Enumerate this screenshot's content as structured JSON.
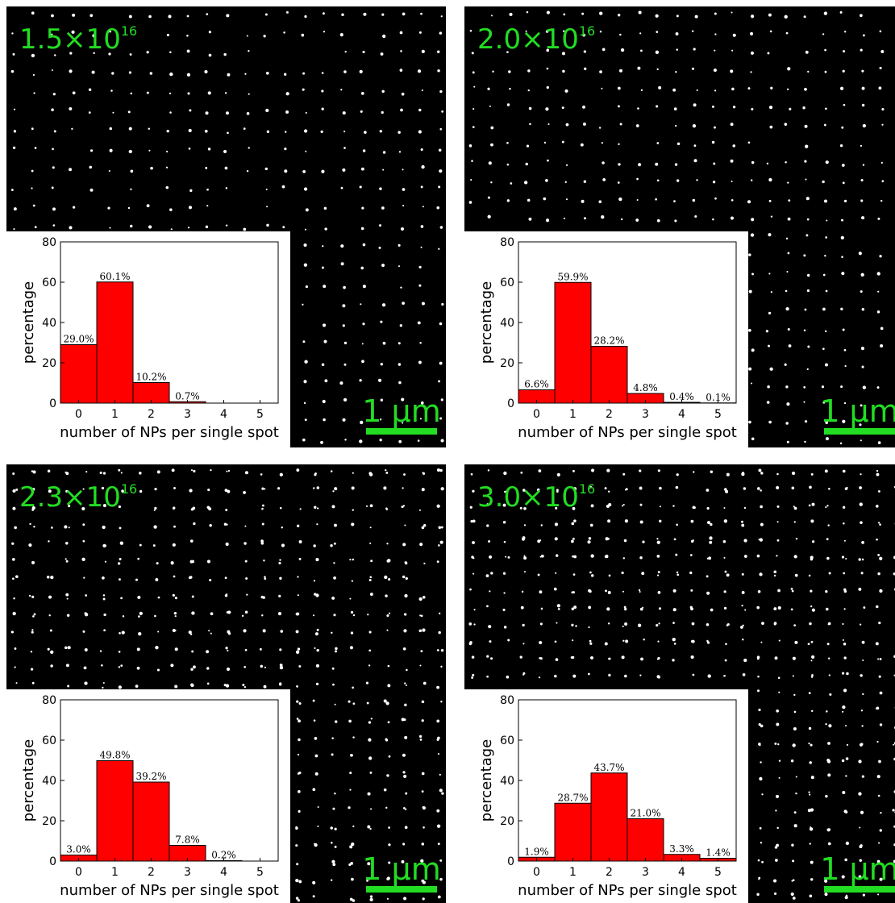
{
  "chart_data": [
    {
      "type": "bar",
      "label": {
        "base": "1.5×10",
        "exponent": "16"
      },
      "scale_bar": "1 μm",
      "xlabel": "number of NPs per single spot",
      "ylabel": "percentage",
      "categories": [
        "0",
        "1",
        "2",
        "3",
        "4",
        "5"
      ],
      "values": [
        29.0,
        60.1,
        10.2,
        0.7,
        null,
        null
      ],
      "value_labels": [
        "29.0%",
        "60.1%",
        "10.2%",
        "0.7%",
        null,
        null
      ],
      "color": "#ff0000",
      "ylim": [
        0,
        80
      ],
      "yticks": [
        0,
        20,
        40,
        60,
        80
      ]
    },
    {
      "type": "bar",
      "label": {
        "base": "2.0×10",
        "exponent": "16"
      },
      "scale_bar": "1 μm",
      "xlabel": "number of NPs per single spot",
      "ylabel": "percentage",
      "categories": [
        "0",
        "1",
        "2",
        "3",
        "4",
        "5"
      ],
      "values": [
        6.6,
        59.9,
        28.2,
        4.8,
        0.4,
        0.1
      ],
      "value_labels": [
        "6.6%",
        "59.9%",
        "28.2%",
        "4.8%",
        "0.4%",
        "0.1%"
      ],
      "color": "#ff0000",
      "ylim": [
        0,
        80
      ],
      "yticks": [
        0,
        20,
        40,
        60,
        80
      ]
    },
    {
      "type": "bar",
      "label": {
        "base": "2.3×10",
        "exponent": "16"
      },
      "scale_bar": "1 μm",
      "xlabel": "number of NPs per single spot",
      "ylabel": "percentage",
      "categories": [
        "0",
        "1",
        "2",
        "3",
        "4",
        "5"
      ],
      "values": [
        3.0,
        49.8,
        39.2,
        7.8,
        0.2,
        null
      ],
      "value_labels": [
        "3.0%",
        "49.8%",
        "39.2%",
        "7.8%",
        "0.2%",
        null
      ],
      "color": "#ff0000",
      "ylim": [
        0,
        80
      ],
      "yticks": [
        0,
        20,
        40,
        60,
        80
      ]
    },
    {
      "type": "bar",
      "label": {
        "base": "3.0×10",
        "exponent": "16"
      },
      "scale_bar": "1 μm",
      "xlabel": "number of NPs per single spot",
      "ylabel": "percentage",
      "categories": [
        "0",
        "1",
        "2",
        "3",
        "4",
        "5"
      ],
      "values": [
        1.9,
        28.7,
        43.7,
        21.0,
        3.3,
        1.4
      ],
      "value_labels": [
        "1.9%",
        "28.7%",
        "43.7%",
        "21.0%",
        "3.3%",
        "1.4%"
      ],
      "color": "#ff0000",
      "ylim": [
        0,
        80
      ],
      "yticks": [
        0,
        20,
        40,
        60,
        80
      ]
    }
  ]
}
